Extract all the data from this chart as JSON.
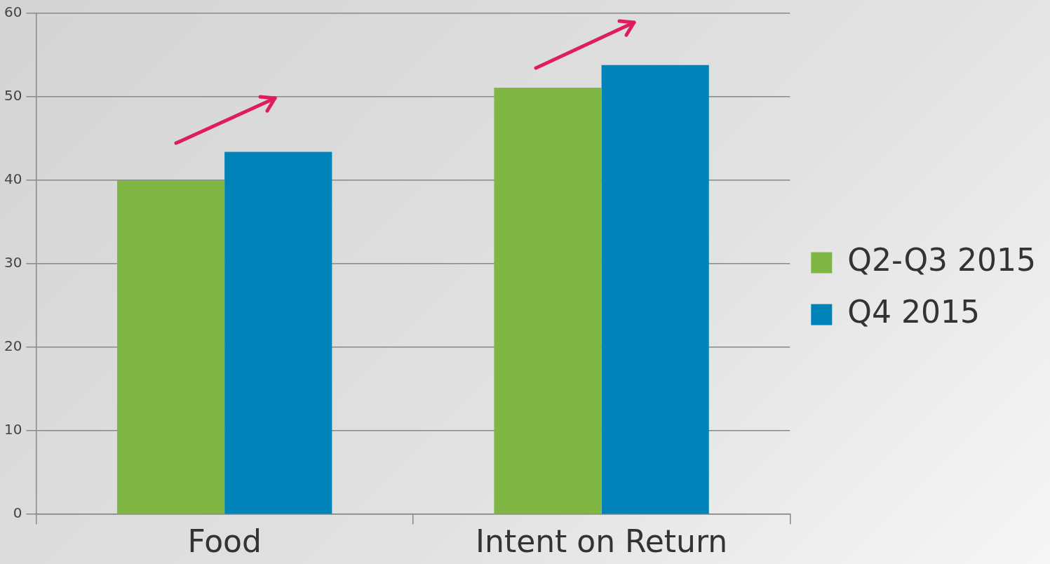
{
  "chart_data": {
    "type": "bar",
    "categories": [
      "Food",
      "Intent on Return"
    ],
    "series": [
      {
        "name": "Q2-Q3 2015",
        "color": "#80b744",
        "values": [
          40,
          51.1
        ]
      },
      {
        "name": "Q4 2015",
        "color": "#0083b8",
        "values": [
          43.4,
          53.8
        ]
      }
    ],
    "ylim": [
      0,
      60
    ],
    "yticks": [
      0,
      10,
      20,
      30,
      40,
      50,
      60
    ],
    "grid": "y",
    "legend": "right"
  }
}
